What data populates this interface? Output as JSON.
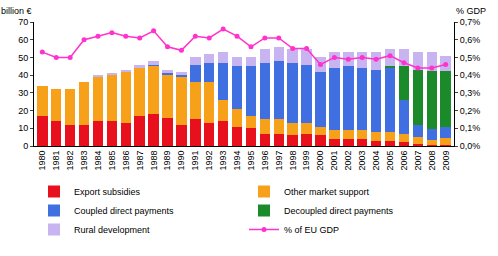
{
  "chart_data": {
    "type": "bar",
    "stacked": true,
    "grid": false,
    "legend": "bottom",
    "y_label": "billion €",
    "y2_label": "% GDP",
    "categories": [
      "1980",
      "1981",
      "1982",
      "1983",
      "1984",
      "1985",
      "1986",
      "1987",
      "1988",
      "1989",
      "1990",
      "1991",
      "1992",
      "1993",
      "1994",
      "1995",
      "1996",
      "1997",
      "1998",
      "1999",
      "2000",
      "2001",
      "2002",
      "2003",
      "2004",
      "2005",
      "2006",
      "2007",
      "2008",
      "2009"
    ],
    "ylim": [
      0,
      70
    ],
    "yticks": [
      0,
      10,
      20,
      30,
      40,
      50,
      60,
      70
    ],
    "y2lim": [
      0,
      0.7
    ],
    "y2ticks": [
      {
        "value": 0,
        "label": "0,0%"
      },
      {
        "value": 0.1,
        "label": "0,1%"
      },
      {
        "value": 0.2,
        "label": "0,2%"
      },
      {
        "value": 0.3,
        "label": "0,3%"
      },
      {
        "value": 0.4,
        "label": "0,4%"
      },
      {
        "value": 0.5,
        "label": "0,5%"
      },
      {
        "value": 0.6,
        "label": "0,6%"
      },
      {
        "value": 0.7,
        "label": "0,7%"
      }
    ],
    "series": [
      {
        "name": "Export subsidies",
        "color": "#e8101c",
        "type": "bar",
        "values": [
          17,
          14,
          12,
          12,
          14,
          14,
          13,
          17,
          18,
          16,
          12,
          15,
          13,
          14,
          11,
          10,
          7,
          7,
          6,
          7,
          6,
          4,
          4,
          4,
          3,
          3,
          2,
          1,
          0.5,
          0.5
        ]
      },
      {
        "name": "Other market support",
        "color": "#f7a11a",
        "type": "bar",
        "values": [
          17,
          18,
          20,
          24,
          25,
          26,
          29,
          27,
          27,
          24,
          27,
          21,
          23,
          12,
          10,
          7,
          8,
          8,
          7,
          6,
          5,
          5,
          5,
          5,
          5,
          5,
          5,
          4,
          3,
          4
        ]
      },
      {
        "name": "Coupled direct payments",
        "color": "#3f6fe0",
        "type": "bar",
        "values": [
          0,
          0,
          0,
          0,
          0,
          0,
          0,
          0,
          1,
          1,
          1,
          10,
          11,
          21,
          24,
          28,
          32,
          33,
          34,
          33,
          31,
          35,
          36,
          35,
          35,
          36,
          19,
          7,
          6,
          6
        ]
      },
      {
        "name": "Decoupled direct payments",
        "color": "#1a8a2a",
        "type": "bar",
        "values": [
          0,
          0,
          0,
          0,
          0,
          0,
          0,
          0,
          0,
          0,
          0,
          0,
          0,
          0,
          0,
          0,
          0,
          0,
          0,
          0,
          0,
          0,
          0,
          0,
          0,
          1,
          19,
          31,
          33,
          32
        ]
      },
      {
        "name": "Rural development",
        "color": "#c8b4f0",
        "type": "bar",
        "values": [
          0,
          0,
          0,
          0,
          1,
          1,
          1,
          2,
          2,
          2,
          2,
          4,
          5,
          6,
          5,
          5,
          8,
          8,
          8,
          9,
          8,
          9,
          8,
          9,
          10,
          10,
          10,
          10,
          10.5,
          8.5
        ]
      },
      {
        "name": "% of EU GDP",
        "color": "#ff33cc",
        "type": "line",
        "axis": "y2",
        "marker": "circle",
        "values": [
          0.53,
          0.5,
          0.5,
          0.6,
          0.62,
          0.64,
          0.62,
          0.61,
          0.65,
          0.56,
          0.54,
          0.62,
          0.61,
          0.66,
          0.62,
          0.56,
          0.61,
          0.61,
          0.55,
          0.55,
          0.46,
          0.5,
          0.49,
          0.5,
          0.49,
          0.51,
          0.47,
          0.44,
          0.44,
          0.46
        ]
      }
    ]
  }
}
